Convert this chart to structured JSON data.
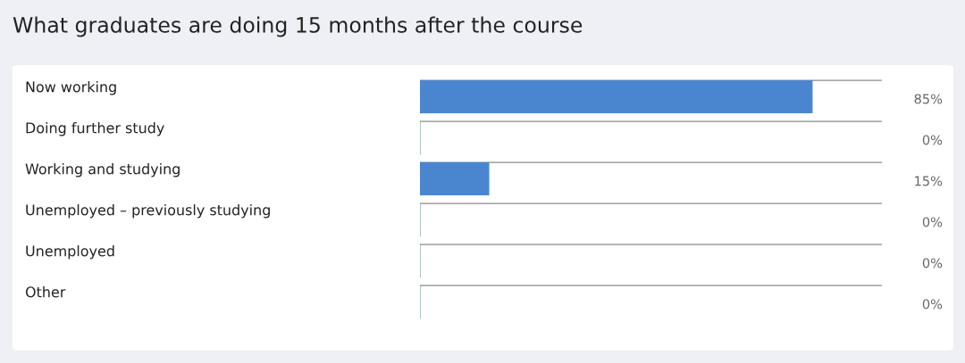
{
  "chart_data": {
    "type": "bar",
    "orientation": "horizontal",
    "title": "What graduates are doing 15 months after the course",
    "categories": [
      "Now working",
      "Doing further study",
      "Working and studying",
      "Unemployed – previously studying",
      "Unemployed",
      "Other"
    ],
    "values": [
      85,
      0,
      15,
      0,
      0,
      0
    ],
    "value_labels": [
      "85%",
      "0%",
      "15%",
      "0%",
      "0%",
      "0%"
    ],
    "color": "#4a86cf",
    "xlim": [
      0,
      100
    ],
    "tick_labels": "y"
  }
}
